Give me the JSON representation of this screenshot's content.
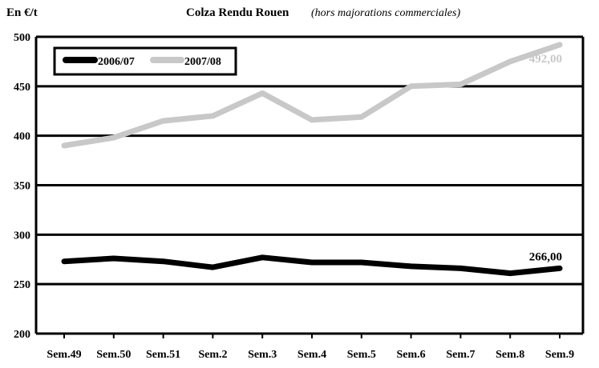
{
  "chart_data": {
    "type": "line",
    "title": "Colza Rendu Rouen",
    "subtitle": "(hors majorations commerciales)",
    "ylabel": "En €/t",
    "xlabel": "",
    "ylim": [
      200,
      500
    ],
    "yticks": [
      "200",
      "250",
      "300",
      "350",
      "400",
      "450",
      "500"
    ],
    "categories": [
      "Sem.49",
      "Sem.50",
      "Sem.51",
      "Sem.2",
      "Sem.3",
      "Sem.4",
      "Sem.5",
      "Sem.6",
      "Sem.7",
      "Sem.8",
      "Sem.9"
    ],
    "grid": true,
    "legend_position": "top-left",
    "series": [
      {
        "name": "2006/07",
        "color": "#000000",
        "values": [
          273,
          276,
          273,
          267,
          277,
          272,
          272,
          268,
          266,
          261,
          266
        ],
        "end_label": "266,00"
      },
      {
        "name": "2007/08",
        "color": "#c8c8c8",
        "values": [
          390,
          398,
          415,
          420,
          443,
          416,
          419,
          450,
          452,
          475,
          492
        ],
        "end_label": "492,00"
      }
    ]
  }
}
